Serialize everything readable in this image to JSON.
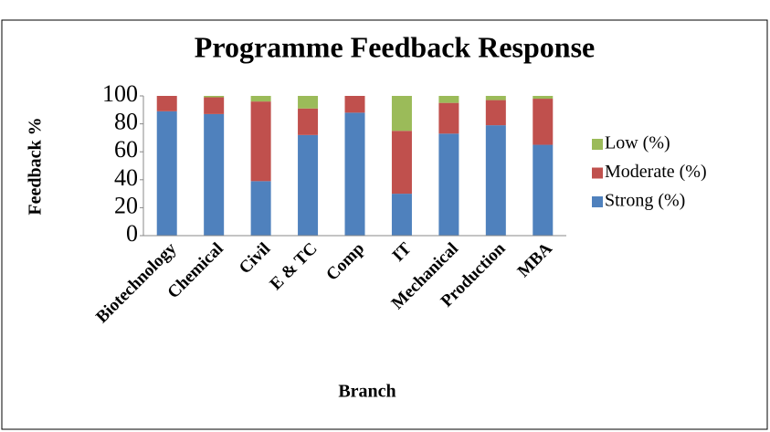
{
  "chart_data": {
    "type": "stacked_bar",
    "title": "Programme Feedback Response",
    "x_label": "Branch",
    "y_label": "Feedback %",
    "categories": [
      "Biotechnology",
      "Chemical",
      "Civil",
      "E & TC",
      "Comp",
      "IT",
      "Mechanical",
      "Production",
      "MBA"
    ],
    "series": [
      {
        "name": "Strong (%)",
        "color": "#4f81bd",
        "values": [
          89,
          87,
          39,
          72,
          88,
          30,
          73,
          79,
          65
        ]
      },
      {
        "name": "Moderate (%)",
        "color": "#c0504d",
        "values": [
          11,
          12,
          57,
          19,
          12,
          45,
          22,
          18,
          33
        ]
      },
      {
        "name": "Low (%)",
        "color": "#9bbb59",
        "values": [
          0,
          1,
          4,
          9,
          0,
          25,
          5,
          3,
          2
        ]
      }
    ],
    "ylim": [
      0,
      100
    ],
    "yticks": [
      0,
      20,
      40,
      60,
      80,
      100
    ],
    "grid": false,
    "legend": "right"
  }
}
